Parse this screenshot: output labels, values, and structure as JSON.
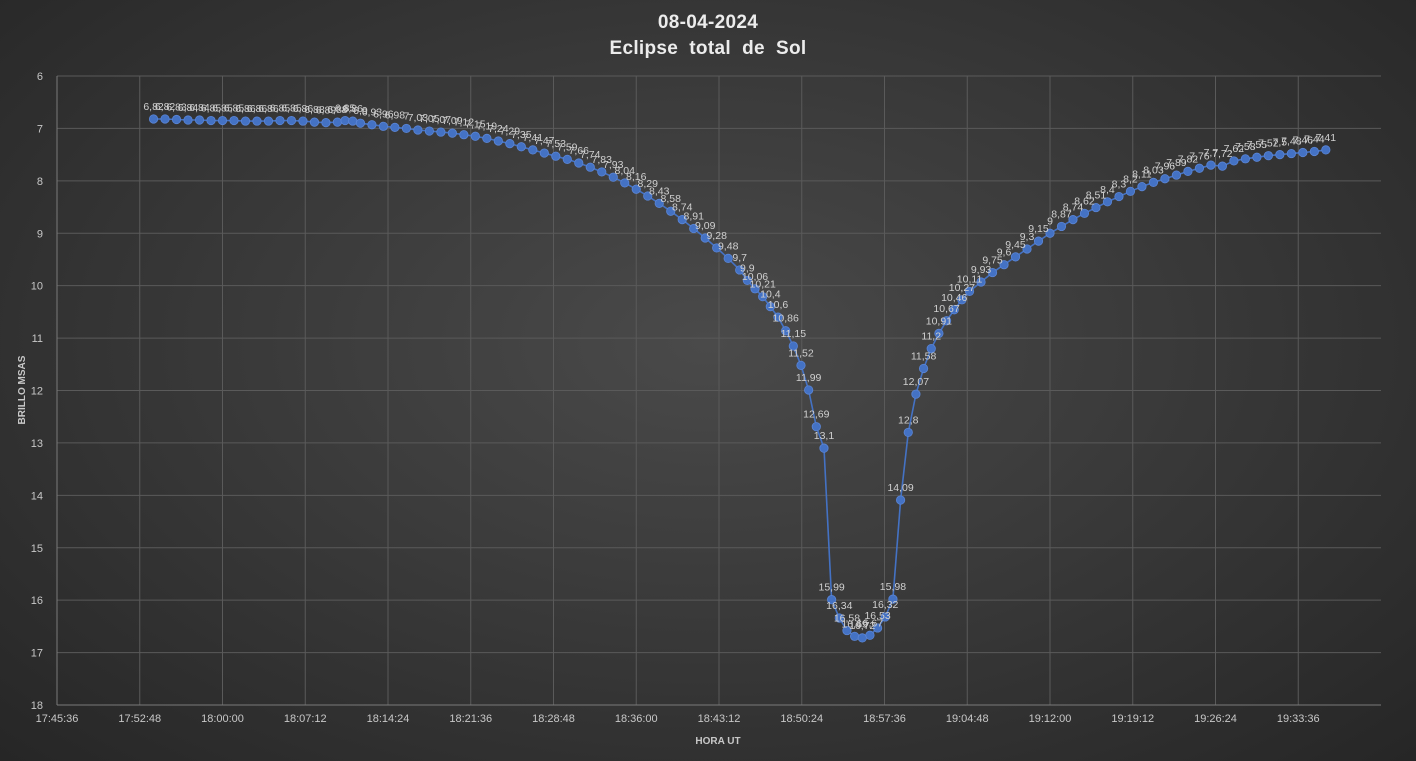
{
  "chart_data": {
    "type": "line",
    "title": "08-04-2024",
    "subtitle": "Eclipse  total  de  Sol",
    "xlabel": "HORA UT",
    "ylabel": "BRILLO MSAS",
    "y_reversed": true,
    "ylim": [
      6,
      18
    ],
    "y_ticks": [
      "6",
      "7",
      "8",
      "9",
      "10",
      "11",
      "12",
      "13",
      "14",
      "15",
      "16",
      "17",
      "18"
    ],
    "x_ticks": [
      "17:45:36",
      "17:52:48",
      "18:00:00",
      "18:07:12",
      "18:14:24",
      "18:21:36",
      "18:28:48",
      "18:36:00",
      "18:43:12",
      "18:50:24",
      "18:57:36",
      "19:04:48",
      "19:12:00",
      "19:19:12",
      "19:26:24",
      "19:33:36"
    ],
    "xlim": [
      "17:45:36",
      "19:40:48"
    ],
    "grid": true,
    "colors": {
      "series": "#4472c4",
      "grid": "#5a5a5a",
      "text": "#d0d0d0"
    },
    "series": [
      {
        "x": [
          "17:54:00",
          "17:55:00",
          "17:56:00",
          "17:57:00",
          "17:58:00",
          "17:59:00",
          "18:00:00",
          "18:01:00",
          "18:02:00",
          "18:03:00",
          "18:04:00",
          "18:05:00",
          "18:06:00",
          "18:07:00",
          "18:08:00",
          "18:09:00",
          "18:10:00",
          "18:10:40",
          "18:11:20",
          "18:12:00",
          "18:13:00",
          "18:14:00",
          "18:15:00",
          "18:16:00",
          "18:17:00",
          "18:18:00",
          "18:19:00",
          "18:20:00",
          "18:21:00",
          "18:22:00",
          "18:23:00",
          "18:24:00",
          "18:25:00",
          "18:26:00",
          "18:27:00",
          "18:28:00",
          "18:29:00",
          "18:30:00",
          "18:31:00",
          "18:32:00",
          "18:33:00",
          "18:34:00",
          "18:35:00",
          "18:36:00",
          "18:37:00",
          "18:38:00",
          "18:39:00",
          "18:40:00",
          "18:41:00",
          "18:42:00",
          "18:43:00",
          "18:44:00",
          "18:45:00",
          "18:45:40",
          "18:46:20",
          "18:47:00",
          "18:47:40",
          "18:48:20",
          "18:49:00",
          "18:49:40",
          "18:50:20",
          "18:51:00",
          "18:51:40",
          "18:52:20",
          "18:53:00",
          "18:53:40",
          "18:54:20",
          "18:55:00",
          "18:55:40",
          "18:56:20",
          "18:57:00",
          "18:57:40",
          "18:58:20",
          "18:59:00",
          "18:59:40",
          "19:00:20",
          "19:01:00",
          "19:01:40",
          "19:02:20",
          "19:03:00",
          "19:03:40",
          "19:04:20",
          "19:05:00",
          "19:06:00",
          "19:07:00",
          "19:08:00",
          "19:09:00",
          "19:10:00",
          "19:11:00",
          "19:12:00",
          "19:13:00",
          "19:14:00",
          "19:15:00",
          "19:16:00",
          "19:17:00",
          "19:18:00",
          "19:19:00",
          "19:20:00",
          "19:21:00",
          "19:22:00",
          "19:23:00",
          "19:24:00",
          "19:25:00",
          "19:26:00",
          "19:27:00",
          "19:28:00",
          "19:29:00",
          "19:30:00",
          "19:31:00",
          "19:32:00",
          "19:33:00",
          "19:34:00",
          "19:35:00",
          "19:36:00"
        ],
        "values": [
          6.82,
          6.82,
          6.83,
          6.84,
          6.84,
          6.85,
          6.85,
          6.85,
          6.86,
          6.86,
          6.86,
          6.85,
          6.85,
          6.86,
          6.88,
          6.89,
          6.88,
          6.85,
          6.86,
          6.9,
          6.93,
          6.96,
          6.98,
          7.0,
          7.03,
          7.05,
          7.07,
          7.09,
          7.12,
          7.15,
          7.19,
          7.24,
          7.29,
          7.35,
          7.41,
          7.47,
          7.53,
          7.59,
          7.66,
          7.74,
          7.83,
          7.93,
          8.04,
          8.16,
          8.29,
          8.43,
          8.58,
          8.74,
          8.91,
          9.09,
          9.28,
          9.48,
          9.7,
          9.9,
          10.06,
          10.21,
          10.4,
          10.6,
          10.86,
          11.15,
          11.52,
          11.99,
          12.69,
          13.1,
          15.99,
          16.34,
          16.58,
          16.69,
          16.72,
          16.67,
          16.53,
          16.32,
          15.98,
          14.09,
          12.8,
          12.07,
          11.58,
          11.2,
          10.91,
          10.67,
          10.46,
          10.27,
          10.11,
          9.93,
          9.75,
          9.6,
          9.45,
          9.3,
          9.15,
          9.0,
          8.87,
          8.74,
          8.62,
          8.51,
          8.4,
          8.3,
          8.2,
          8.11,
          8.03,
          7.96,
          7.89,
          7.82,
          7.76,
          7.7,
          7.72,
          7.62,
          7.58,
          7.55,
          7.52,
          7.5,
          7.48,
          7.46,
          7.44,
          7.41
        ],
        "labels": [
          "6,82",
          "6,82",
          "6,83",
          "6,84",
          "6,84",
          "6,85",
          "6,85",
          "6,85",
          "6,86",
          "6,86",
          "6,86",
          "6,85",
          "6,85",
          "6,86",
          "6,88",
          "6,89",
          "6,88",
          "6,85",
          "6,86",
          "6,9",
          "6,93",
          "6,96",
          "6,98",
          "7",
          "7,03",
          "7,05",
          "7,07",
          "7,09",
          "7,12",
          "7,15",
          "7,19",
          "7,24",
          "7,29",
          "7,35",
          "7,41",
          "7,47",
          "7,53",
          "7,59",
          "7,66",
          "7,74",
          "7,83",
          "7,93",
          "8,04",
          "8,16",
          "8,29",
          "8,43",
          "8,58",
          "8,74",
          "8,91",
          "9,09",
          "9,28",
          "9,48",
          "9,7",
          "9,9",
          "10,06",
          "10,21",
          "10,4",
          "10,6",
          "10,86",
          "11,15",
          "11,52",
          "11,99",
          "12,69",
          "13,1",
          "15,99",
          "16,34",
          "16,58",
          "16,69",
          "16,72",
          "16,67",
          "16,53",
          "16,32",
          "15,98",
          "14,09",
          "12,8",
          "12,07",
          "11,58",
          "11,2",
          "10,91",
          "10,67",
          "10,46",
          "10,27",
          "10,11",
          "9,93",
          "9,75",
          "9,6",
          "9,45",
          "9,3",
          "9,15",
          "9",
          "8,87",
          "8,74",
          "8,62",
          "8,51",
          "8,4",
          "8,3",
          "8,2",
          "8,11",
          "8,03",
          "7,96",
          "7,89",
          "7,82",
          "7,76",
          "7,7",
          "7,72",
          "7,62",
          "7,58",
          "7,55",
          "7,52",
          "7,5",
          "7,48",
          "7,46",
          "7,44",
          "7,41"
        ]
      }
    ]
  }
}
